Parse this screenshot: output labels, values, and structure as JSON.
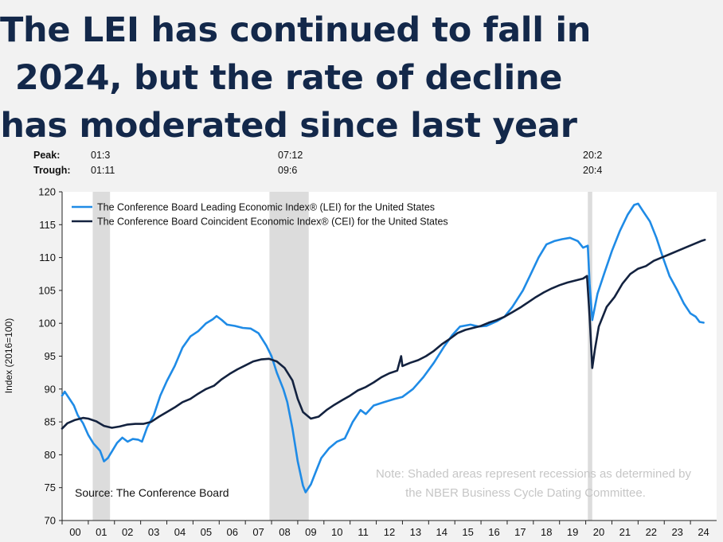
{
  "headline": {
    "line1": "The LEI has continued to fall in",
    "line2": "2024, but the rate of decline",
    "line3": "has moderated since last year"
  },
  "peak_trough": {
    "peak_label": "Peak:",
    "trough_label": "Trough:",
    "peaks": [
      "01:3",
      "07:12",
      "20:2"
    ],
    "troughs": [
      "01:11",
      "09:6",
      "20:4"
    ]
  },
  "chart_data": {
    "type": "line",
    "title": "The LEI has continued to fall in 2024, but the rate of decline has moderated since last year",
    "xlabel": "",
    "ylabel": "Index (2016=100)",
    "xlim": [
      2000,
      2025
    ],
    "ylim": [
      70,
      120
    ],
    "x_ticks": [
      "00",
      "01",
      "02",
      "03",
      "04",
      "05",
      "06",
      "07",
      "08",
      "09",
      "10",
      "11",
      "12",
      "13",
      "14",
      "15",
      "16",
      "17",
      "18",
      "19",
      "20",
      "21",
      "22",
      "23",
      "24"
    ],
    "y_ticks": [
      70,
      75,
      80,
      85,
      90,
      95,
      100,
      105,
      110,
      115,
      120
    ],
    "recessions": [
      {
        "start": 2001.17,
        "end": 2001.83
      },
      {
        "start": 2007.92,
        "end": 2009.42
      },
      {
        "start": 2020.08,
        "end": 2020.25
      }
    ],
    "series": [
      {
        "name": "The Conference Board Leading Economic Index® (LEI) for the United States",
        "color": "#1f8be6",
        "points": [
          [
            2000.0,
            89
          ],
          [
            2000.1,
            89.6
          ],
          [
            2000.25,
            88.7
          ],
          [
            2000.45,
            87.5
          ],
          [
            2000.6,
            86
          ],
          [
            2000.8,
            84.8
          ],
          [
            2001.0,
            83
          ],
          [
            2001.2,
            81.7
          ],
          [
            2001.45,
            80.6
          ],
          [
            2001.6,
            79
          ],
          [
            2001.75,
            79.5
          ],
          [
            2001.9,
            80.5
          ],
          [
            2002.1,
            81.8
          ],
          [
            2002.3,
            82.6
          ],
          [
            2002.5,
            82
          ],
          [
            2002.7,
            82.4
          ],
          [
            2002.9,
            82.3
          ],
          [
            2003.05,
            82
          ],
          [
            2003.25,
            84.2
          ],
          [
            2003.5,
            86
          ],
          [
            2003.75,
            89
          ],
          [
            2004.0,
            91.2
          ],
          [
            2004.3,
            93.5
          ],
          [
            2004.6,
            96.3
          ],
          [
            2004.9,
            98
          ],
          [
            2005.2,
            98.8
          ],
          [
            2005.5,
            100
          ],
          [
            2005.75,
            100.6
          ],
          [
            2005.9,
            101.1
          ],
          [
            2006.1,
            100.5
          ],
          [
            2006.3,
            99.8
          ],
          [
            2006.6,
            99.6
          ],
          [
            2006.9,
            99.3
          ],
          [
            2007.2,
            99.2
          ],
          [
            2007.5,
            98.5
          ],
          [
            2007.8,
            96.6
          ],
          [
            2008.0,
            95
          ],
          [
            2008.2,
            92.5
          ],
          [
            2008.45,
            90
          ],
          [
            2008.6,
            88
          ],
          [
            2008.8,
            84
          ],
          [
            2009.0,
            79
          ],
          [
            2009.2,
            75.3
          ],
          [
            2009.3,
            74.3
          ],
          [
            2009.5,
            75.5
          ],
          [
            2009.7,
            77.5
          ],
          [
            2009.9,
            79.5
          ],
          [
            2010.2,
            81
          ],
          [
            2010.5,
            82
          ],
          [
            2010.8,
            82.5
          ],
          [
            2011.1,
            85
          ],
          [
            2011.4,
            86.8
          ],
          [
            2011.6,
            86.2
          ],
          [
            2011.9,
            87.5
          ],
          [
            2012.3,
            88
          ],
          [
            2012.7,
            88.5
          ],
          [
            2013.0,
            88.8
          ],
          [
            2013.4,
            90
          ],
          [
            2013.8,
            91.8
          ],
          [
            2014.2,
            94
          ],
          [
            2014.6,
            96.5
          ],
          [
            2014.9,
            98.2
          ],
          [
            2015.2,
            99.5
          ],
          [
            2015.6,
            99.8
          ],
          [
            2015.9,
            99.5
          ],
          [
            2016.2,
            99.6
          ],
          [
            2016.6,
            100.3
          ],
          [
            2016.9,
            101
          ],
          [
            2017.2,
            102.5
          ],
          [
            2017.6,
            105
          ],
          [
            2017.9,
            107.5
          ],
          [
            2018.2,
            110
          ],
          [
            2018.5,
            112
          ],
          [
            2018.8,
            112.5
          ],
          [
            2019.1,
            112.8
          ],
          [
            2019.4,
            113
          ],
          [
            2019.7,
            112.5
          ],
          [
            2019.9,
            111.5
          ],
          [
            2020.08,
            111.8
          ],
          [
            2020.15,
            106
          ],
          [
            2020.25,
            100.5
          ],
          [
            2020.45,
            104.5
          ],
          [
            2020.7,
            107.5
          ],
          [
            2021.0,
            111
          ],
          [
            2021.3,
            114
          ],
          [
            2021.6,
            116.5
          ],
          [
            2021.85,
            118
          ],
          [
            2022.0,
            118.2
          ],
          [
            2022.2,
            117
          ],
          [
            2022.45,
            115.5
          ],
          [
            2022.7,
            113
          ],
          [
            2022.95,
            110
          ],
          [
            2023.2,
            107.2
          ],
          [
            2023.5,
            105
          ],
          [
            2023.75,
            103
          ],
          [
            2024.0,
            101.5
          ],
          [
            2024.2,
            101
          ],
          [
            2024.35,
            100.2
          ],
          [
            2024.5,
            100.1
          ]
        ]
      },
      {
        "name": "The Conference Board Coincident Economic Index® (CEI) for the United States",
        "color": "#13223f",
        "points": [
          [
            2000.0,
            84
          ],
          [
            2000.2,
            84.8
          ],
          [
            2000.5,
            85.3
          ],
          [
            2000.8,
            85.6
          ],
          [
            2001.0,
            85.5
          ],
          [
            2001.3,
            85.1
          ],
          [
            2001.6,
            84.4
          ],
          [
            2001.9,
            84.1
          ],
          [
            2002.2,
            84.3
          ],
          [
            2002.5,
            84.6
          ],
          [
            2002.8,
            84.7
          ],
          [
            2003.1,
            84.7
          ],
          [
            2003.4,
            85
          ],
          [
            2003.7,
            85.8
          ],
          [
            2004.0,
            86.5
          ],
          [
            2004.3,
            87.2
          ],
          [
            2004.6,
            88
          ],
          [
            2004.9,
            88.5
          ],
          [
            2005.2,
            89.3
          ],
          [
            2005.5,
            90
          ],
          [
            2005.8,
            90.5
          ],
          [
            2006.1,
            91.5
          ],
          [
            2006.4,
            92.3
          ],
          [
            2006.7,
            93
          ],
          [
            2007.0,
            93.6
          ],
          [
            2007.3,
            94.2
          ],
          [
            2007.6,
            94.5
          ],
          [
            2007.9,
            94.6
          ],
          [
            2008.2,
            94.2
          ],
          [
            2008.5,
            93.2
          ],
          [
            2008.8,
            91.3
          ],
          [
            2009.0,
            88.5
          ],
          [
            2009.2,
            86.5
          ],
          [
            2009.5,
            85.5
          ],
          [
            2009.8,
            85.8
          ],
          [
            2010.1,
            86.8
          ],
          [
            2010.4,
            87.6
          ],
          [
            2010.7,
            88.3
          ],
          [
            2011.0,
            89
          ],
          [
            2011.3,
            89.8
          ],
          [
            2011.6,
            90.3
          ],
          [
            2011.9,
            91
          ],
          [
            2012.2,
            91.8
          ],
          [
            2012.5,
            92.4
          ],
          [
            2012.8,
            92.8
          ],
          [
            2012.95,
            95
          ],
          [
            2013.0,
            93.5
          ],
          [
            2013.3,
            94
          ],
          [
            2013.6,
            94.4
          ],
          [
            2013.9,
            95
          ],
          [
            2014.2,
            95.8
          ],
          [
            2014.5,
            96.8
          ],
          [
            2014.8,
            97.6
          ],
          [
            2015.1,
            98.5
          ],
          [
            2015.4,
            99
          ],
          [
            2015.7,
            99.3
          ],
          [
            2016.0,
            99.6
          ],
          [
            2016.3,
            100.1
          ],
          [
            2016.6,
            100.5
          ],
          [
            2016.9,
            101
          ],
          [
            2017.2,
            101.7
          ],
          [
            2017.5,
            102.4
          ],
          [
            2017.8,
            103.2
          ],
          [
            2018.1,
            104
          ],
          [
            2018.4,
            104.7
          ],
          [
            2018.7,
            105.3
          ],
          [
            2019.0,
            105.8
          ],
          [
            2019.3,
            106.2
          ],
          [
            2019.6,
            106.5
          ],
          [
            2019.9,
            106.8
          ],
          [
            2020.05,
            107.2
          ],
          [
            2020.15,
            101
          ],
          [
            2020.25,
            93.2
          ],
          [
            2020.35,
            96
          ],
          [
            2020.5,
            99.5
          ],
          [
            2020.8,
            102.5
          ],
          [
            2021.1,
            104
          ],
          [
            2021.4,
            106
          ],
          [
            2021.7,
            107.5
          ],
          [
            2022.0,
            108.3
          ],
          [
            2022.3,
            108.7
          ],
          [
            2022.6,
            109.5
          ],
          [
            2022.9,
            110
          ],
          [
            2023.2,
            110.5
          ],
          [
            2023.5,
            111
          ],
          [
            2023.8,
            111.5
          ],
          [
            2024.1,
            112
          ],
          [
            2024.4,
            112.5
          ],
          [
            2024.55,
            112.7
          ]
        ]
      }
    ],
    "legend": "top-left",
    "source": "Source: The Conference Board",
    "note_line1": "Note: Shaded areas represent recessions as determined by",
    "note_line2": "the NBER Business Cycle Dating Committee."
  }
}
